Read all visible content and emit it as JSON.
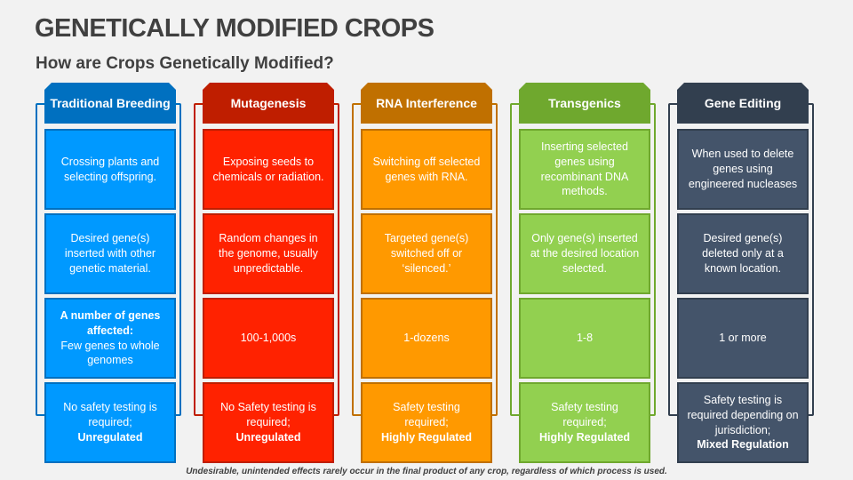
{
  "title": "GENETICALLY MODIFIED CROPS",
  "subtitle": "How are Crops Genetically Modified?",
  "footer": "Undesirable, unintended effects rarely occur in the final product of any crop, regardless of which process is used.",
  "columns": [
    {
      "header": "Traditional Breeding",
      "colors": {
        "header": "#0070C0",
        "cell": "#0099FF",
        "border": "#0070C0"
      },
      "cells": [
        {
          "text": "Crossing plants and selecting offspring.",
          "bold": ""
        },
        {
          "text": "Desired gene(s) inserted with other genetic material.",
          "bold": ""
        },
        {
          "bold_first": "A number of genes affected:",
          "text": "Few genes to whole genomes",
          "bold": ""
        },
        {
          "text": "No safety testing is required;",
          "bold": "Unregulated"
        }
      ]
    },
    {
      "header": "Mutagenesis",
      "colors": {
        "header": "#BF1E00",
        "cell": "#FF2200",
        "border": "#BF1E00"
      },
      "cells": [
        {
          "text": "Exposing seeds to chemicals or radiation.",
          "bold": ""
        },
        {
          "text": "Random changes in the genome, usually unpredictable.",
          "bold": ""
        },
        {
          "text": "100-1,000s",
          "bold": ""
        },
        {
          "text": "No Safety testing is required;",
          "bold": "Unregulated"
        }
      ]
    },
    {
      "header": "RNA Interference",
      "colors": {
        "header": "#C07000",
        "cell": "#FF9900",
        "border": "#C07000"
      },
      "cells": [
        {
          "text": "Switching off selected genes with RNA.",
          "bold": ""
        },
        {
          "text": "Targeted gene(s) switched off or ‘silenced.’",
          "bold": ""
        },
        {
          "text": "1-dozens",
          "bold": ""
        },
        {
          "text": "Safety testing required;",
          "bold": "Highly Regulated"
        }
      ]
    },
    {
      "header": "Transgenics",
      "colors": {
        "header": "#6FA82E",
        "cell": "#92D050",
        "border": "#6FA82E"
      },
      "cells": [
        {
          "text": "Inserting selected genes using recombinant DNA methods.",
          "bold": ""
        },
        {
          "text": "Only gene(s) inserted at the desired location selected.",
          "bold": ""
        },
        {
          "text": "1-8",
          "bold": ""
        },
        {
          "text": "Safety testing required;",
          "bold": "Highly Regulated"
        }
      ]
    },
    {
      "header": "Gene Editing",
      "colors": {
        "header": "#323F4F",
        "cell": "#44546A",
        "border": "#323F4F"
      },
      "cells": [
        {
          "text": "When used to delete genes using engineered nucleases",
          "bold": ""
        },
        {
          "text": "Desired gene(s) deleted only at a known location.",
          "bold": ""
        },
        {
          "text": "1 or more",
          "bold": ""
        },
        {
          "text": "Safety testing is required depending on jurisdiction;",
          "bold": "Mixed Regulation"
        }
      ]
    }
  ]
}
